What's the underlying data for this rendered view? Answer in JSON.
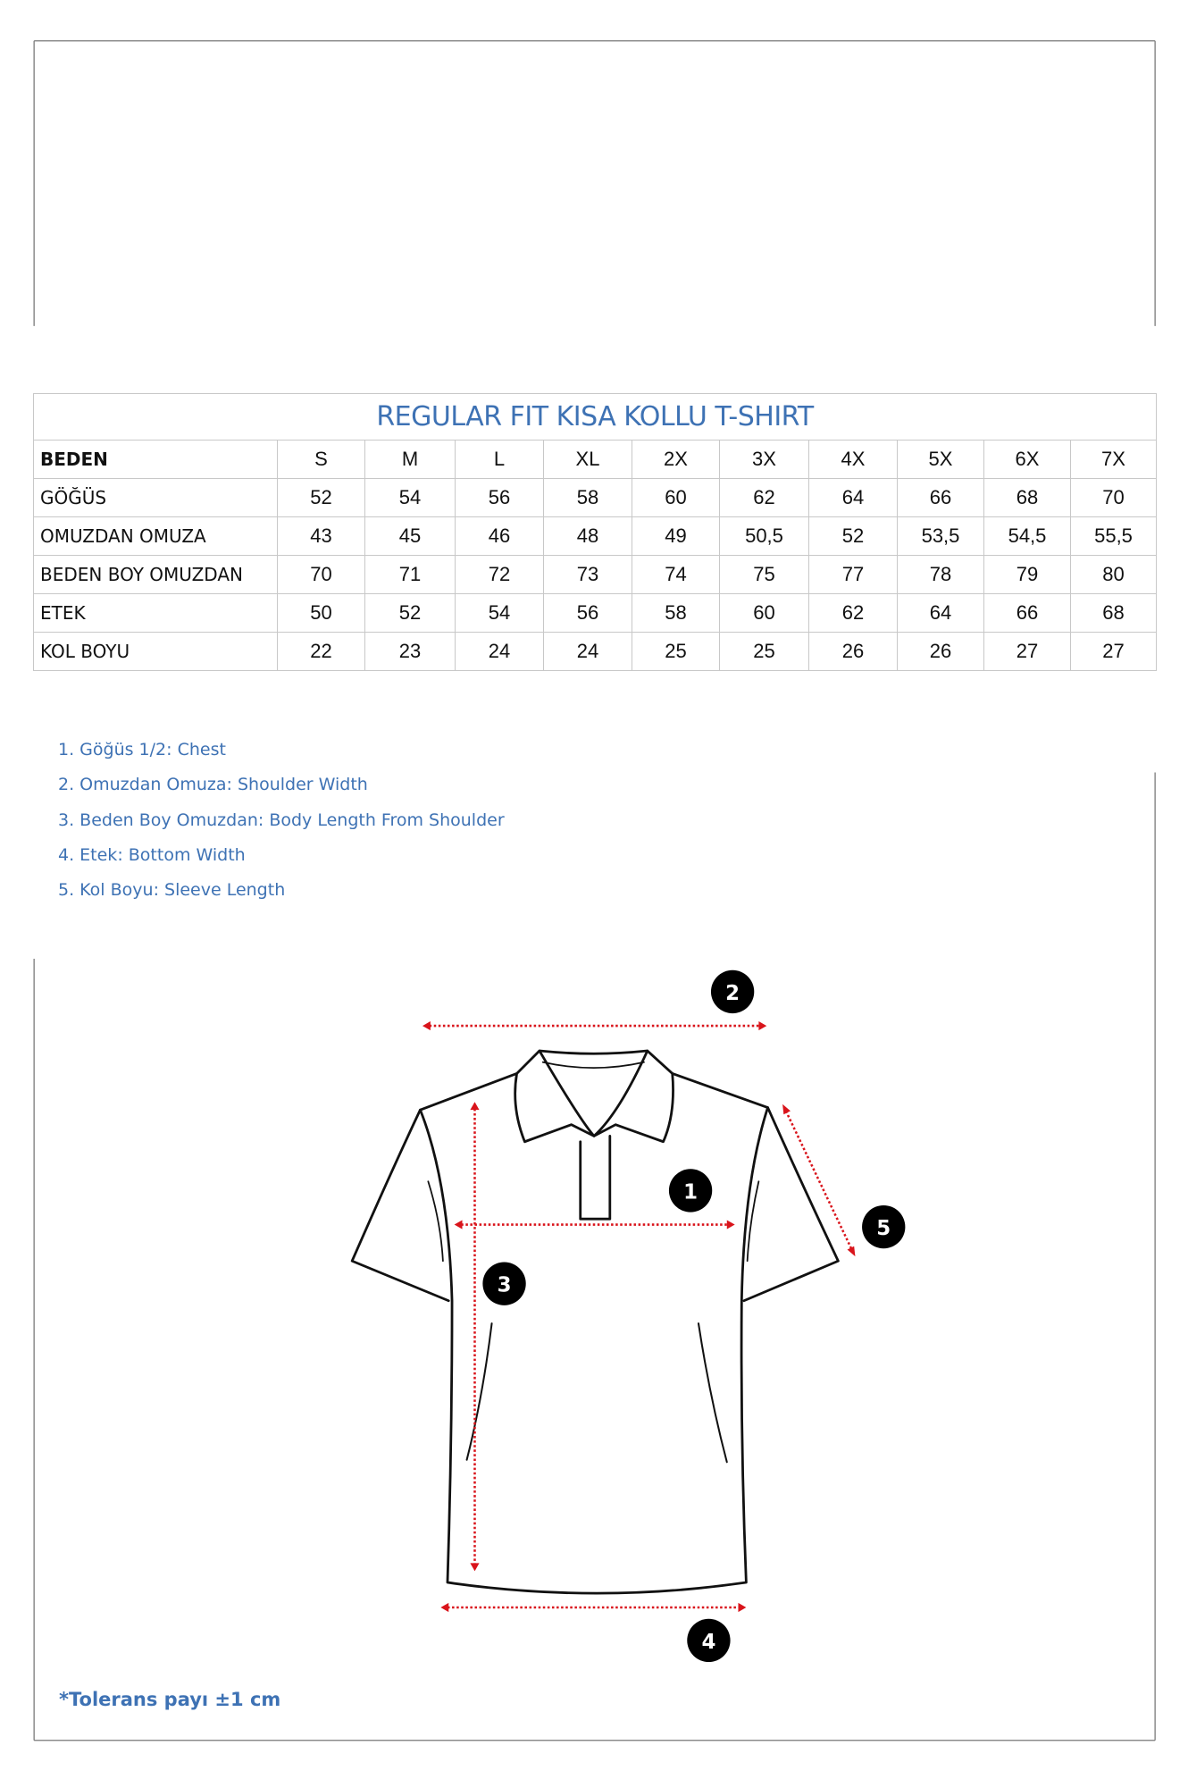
{
  "table": {
    "title": "REGULAR FIT KISA KOLLU  T-SHIRT",
    "header": {
      "label": "BEDEN",
      "sizes": [
        "S",
        "M",
        "L",
        "XL",
        "2X",
        "3X",
        "4X",
        "5X",
        "6X",
        "7X"
      ]
    },
    "rows": [
      {
        "label": "GÖĞÜS",
        "values": [
          "52",
          "54",
          "56",
          "58",
          "60",
          "62",
          "64",
          "66",
          "68",
          "70"
        ]
      },
      {
        "label": "OMUZDAN OMUZA",
        "values": [
          "43",
          "45",
          "46",
          "48",
          "49",
          "50,5",
          "52",
          "53,5",
          "54,5",
          "55,5"
        ]
      },
      {
        "label": "BEDEN BOY OMUZDAN",
        "values": [
          "70",
          "71",
          "72",
          "73",
          "74",
          "75",
          "77",
          "78",
          "79",
          "80"
        ]
      },
      {
        "label": "ETEK",
        "values": [
          "50",
          "52",
          "54",
          "56",
          "58",
          "60",
          "62",
          "64",
          "66",
          "68"
        ]
      },
      {
        "label": "KOL BOYU",
        "values": [
          "22",
          "23",
          "24",
          "24",
          "25",
          "25",
          "26",
          "26",
          "27",
          "27"
        ]
      }
    ]
  },
  "legend": [
    "1. Göğüs 1/2: Chest",
    "2. Omuzdan Omuza: Shoulder Width",
    "3. Beden Boy Omuzdan: Body Length From Shoulder",
    "4. Etek: Bottom Width",
    "5. Kol Boyu: Sleeve Length"
  ],
  "diagram": {
    "markers": [
      "1",
      "2",
      "3",
      "4",
      "5"
    ],
    "measure_color": "#d9141b",
    "badge_color": "#000000"
  },
  "footnote": "*Tolerans payı ±1 cm",
  "colors": {
    "accent": "#3e72b4",
    "border": "#c8c8c8"
  }
}
